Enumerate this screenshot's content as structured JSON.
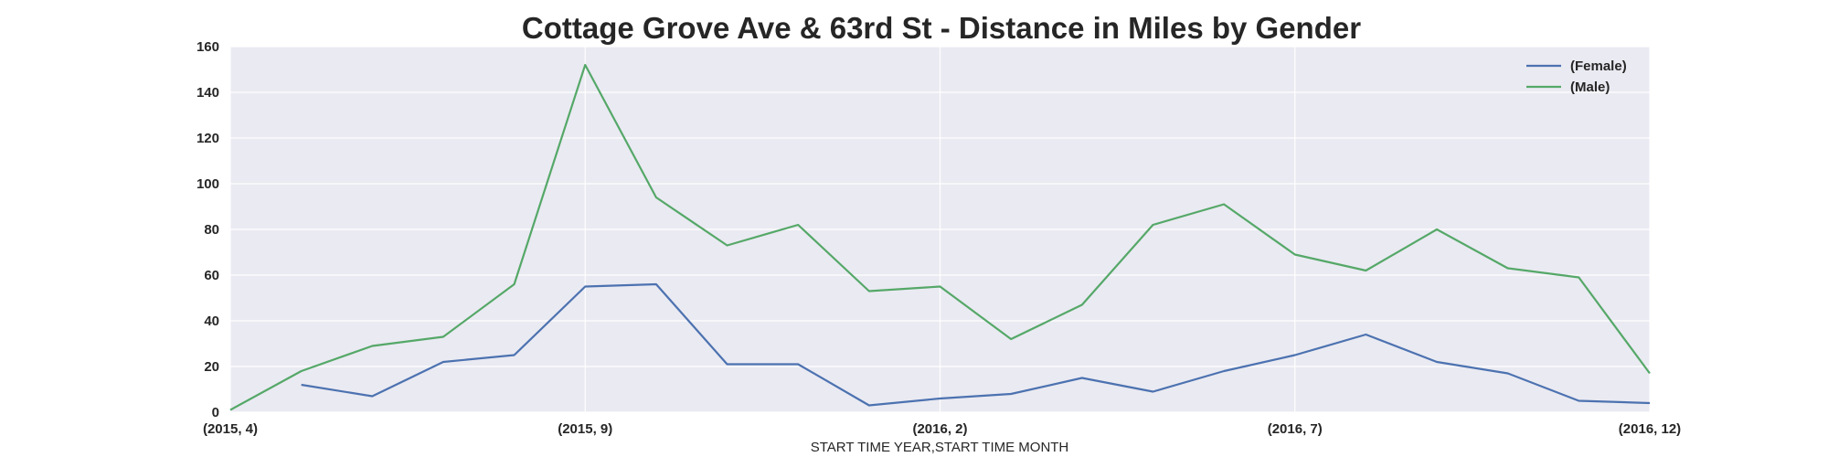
{
  "chart_data": {
    "type": "line",
    "title": "Cottage Grove Ave & 63rd St - Distance in Miles by Gender",
    "xlabel": "START TIME YEAR,START TIME MONTH",
    "ylabel": "",
    "ylim": [
      0,
      160
    ],
    "yticks": [
      0,
      20,
      40,
      60,
      80,
      100,
      120,
      140,
      160
    ],
    "grid": true,
    "legend_position": "top-right",
    "x_tick_labels": [
      {
        "index": 0,
        "label": "(2015, 4)"
      },
      {
        "index": 5,
        "label": "(2015, 9)"
      },
      {
        "index": 10,
        "label": "(2016, 2)"
      },
      {
        "index": 15,
        "label": "(2016, 7)"
      },
      {
        "index": 20,
        "label": "(2016, 12)"
      }
    ],
    "x": [
      "(2015, 4)",
      "(2015, 5)",
      "(2015, 6)",
      "(2015, 7)",
      "(2015, 8)",
      "(2015, 9)",
      "(2015, 10)",
      "(2015, 11)",
      "(2015, 12)",
      "(2016, 1)",
      "(2016, 2)",
      "(2016, 3)",
      "(2016, 4)",
      "(2016, 5)",
      "(2016, 6)",
      "(2016, 7)",
      "(2016, 8)",
      "(2016, 9)",
      "(2016, 10)",
      "(2016, 11)",
      "(2016, 12)"
    ],
    "series": [
      {
        "name": "(Female)",
        "color": "#4c72b0",
        "values": [
          null,
          12,
          7,
          22,
          25,
          55,
          56,
          21,
          21,
          3,
          6,
          8,
          15,
          9,
          18,
          25,
          34,
          22,
          17,
          5,
          4
        ]
      },
      {
        "name": "(Male)",
        "color": "#55a868",
        "values": [
          1,
          18,
          29,
          33,
          56,
          152,
          94,
          73,
          82,
          53,
          55,
          32,
          47,
          82,
          91,
          69,
          62,
          80,
          63,
          59,
          17
        ]
      }
    ],
    "colors": {
      "plot_background": "#eaeaf2",
      "grid": "#ffffff",
      "text": "#262626"
    }
  }
}
